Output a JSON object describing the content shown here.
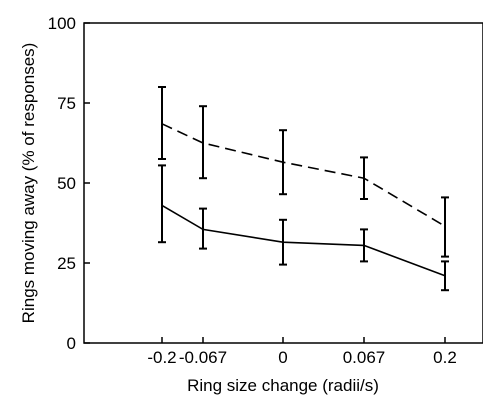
{
  "chart_data": {
    "type": "line",
    "title": "",
    "xlabel": "Ring size change (radii/s)",
    "ylabel": "Rings moving away (% of responses)",
    "categories": [
      "-0.2",
      "-0.067",
      "0",
      "0.067",
      "0.2"
    ],
    "ylim": [
      0,
      100
    ],
    "yticks": [
      0,
      25,
      50,
      75,
      100
    ],
    "grid": false,
    "legend": "none",
    "series": [
      {
        "style": "dashed",
        "color": "#000000",
        "values": [
          68.5,
          62.5,
          56.5,
          51.5,
          36.5
        ],
        "error_low": [
          57.5,
          51.5,
          46.5,
          45.0,
          27.0
        ],
        "error_high": [
          80.0,
          74.0,
          66.5,
          58.0,
          45.5
        ]
      },
      {
        "style": "solid",
        "color": "#000000",
        "values": [
          43.0,
          35.5,
          31.5,
          30.5,
          21.0
        ],
        "error_low": [
          31.5,
          29.5,
          24.5,
          25.5,
          16.5
        ],
        "error_high": [
          55.5,
          42.0,
          38.5,
          35.5,
          25.5
        ]
      }
    ]
  }
}
